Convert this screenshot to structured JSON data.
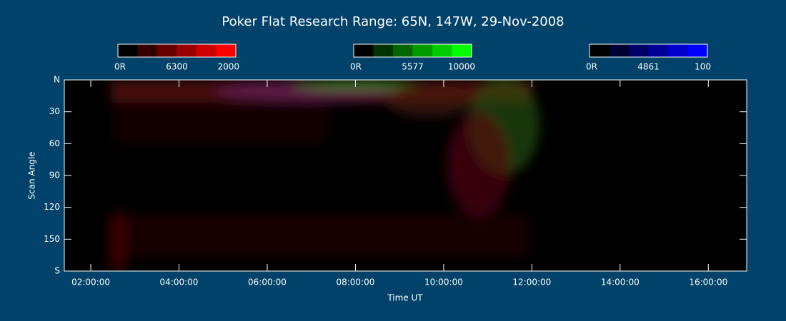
{
  "chart_data": {
    "type": "image",
    "title": "Poker Flat Research Range: 65N, 147W, 29-Nov-2008",
    "xlabel": "Time UT",
    "ylabel": "Scan Angle",
    "xlim": [
      1.4,
      16.87
    ],
    "xticks": [
      {
        "value": 2,
        "label": "02:00:00"
      },
      {
        "value": 4,
        "label": "04:00:00"
      },
      {
        "value": 6,
        "label": "06:00:00"
      },
      {
        "value": 8,
        "label": "08:00:00"
      },
      {
        "value": 10,
        "label": "10:00:00"
      },
      {
        "value": 12,
        "label": "12:00:00"
      },
      {
        "value": 14,
        "label": "14:00:00"
      },
      {
        "value": 16,
        "label": "16:00:00"
      }
    ],
    "ylim": [
      0,
      180
    ],
    "yticks": [
      {
        "value": 0,
        "label": "N"
      },
      30,
      60,
      90,
      120,
      150,
      {
        "value": 180,
        "label": "S"
      }
    ],
    "colorbars": [
      {
        "colors": [
          "#000000",
          "#330000",
          "#660000",
          "#990000",
          "#cc0000",
          "#ff0000"
        ],
        "labels": [
          "0R",
          "6300",
          "2000"
        ]
      },
      {
        "colors": [
          "#000000",
          "#003300",
          "#006600",
          "#009900",
          "#00cc00",
          "#00ff00"
        ],
        "labels": [
          "0R",
          "5577",
          "10000"
        ]
      },
      {
        "colors": [
          "#000000",
          "#000033",
          "#000066",
          "#000099",
          "#0000cc",
          "#0000ff"
        ],
        "labels": [
          "0R",
          "4861",
          "100"
        ]
      }
    ]
  }
}
